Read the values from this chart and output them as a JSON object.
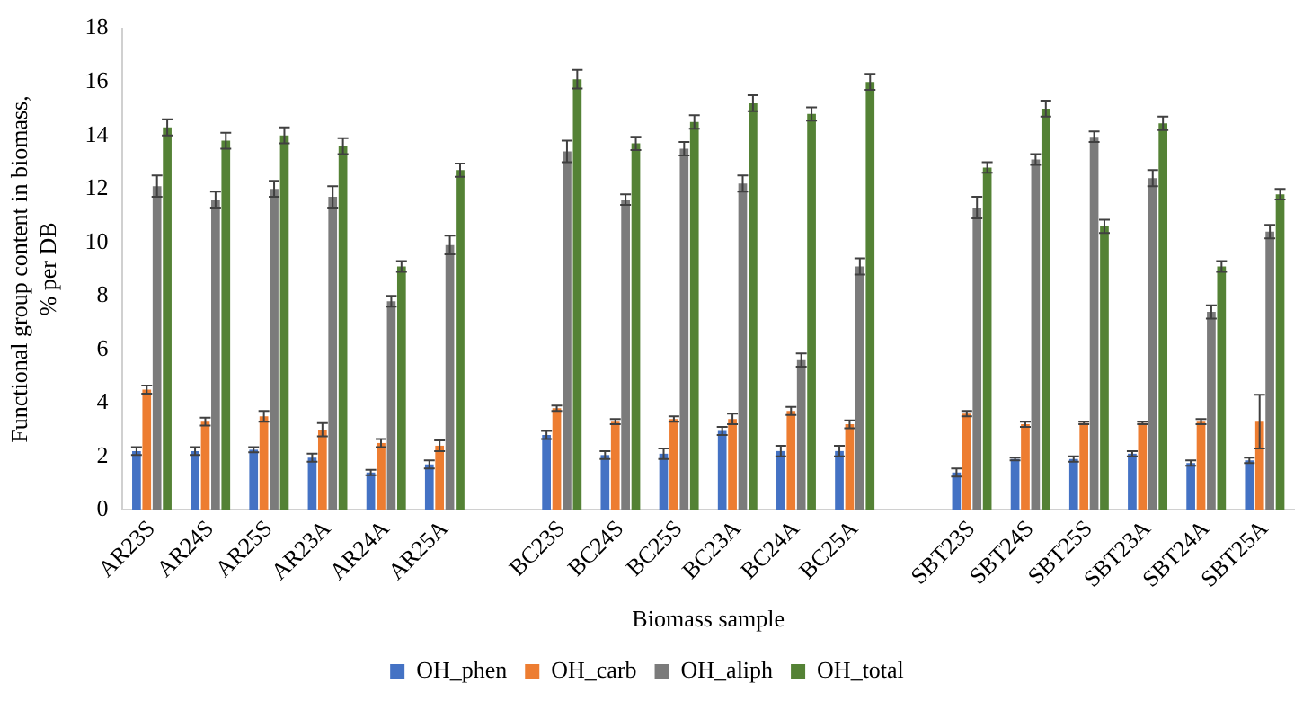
{
  "chart_data": {
    "type": "bar",
    "xlabel": "Biomass sample",
    "ylabel": "Functional group content in biomass, % per DB",
    "categories": [
      "AR23S",
      "AR24S",
      "AR25S",
      "AR23A",
      "AR24A",
      "AR25A",
      null,
      "BC23S",
      "BC24S",
      "BC25S",
      "BC23A",
      "BC24A",
      "BC25A",
      null,
      "SBT23S",
      "SBT24S",
      "SBT25S",
      "SBT23A",
      "SBT24A",
      "SBT25A"
    ],
    "series": [
      {
        "name": "OH_phen",
        "color": "#4472c4",
        "values": [
          2.2,
          2.2,
          2.25,
          1.95,
          1.4,
          1.7,
          null,
          2.8,
          2.05,
          2.1,
          2.95,
          2.2,
          2.2,
          null,
          1.4,
          1.9,
          1.9,
          2.1,
          1.75,
          1.85
        ],
        "errors": [
          0.15,
          0.15,
          0.1,
          0.15,
          0.1,
          0.15,
          null,
          0.15,
          0.15,
          0.2,
          0.15,
          0.2,
          0.2,
          null,
          0.15,
          0.05,
          0.1,
          0.1,
          0.1,
          0.1
        ]
      },
      {
        "name": "OH_carb",
        "color": "#ed7d31",
        "values": [
          4.5,
          3.3,
          3.5,
          3.0,
          2.5,
          2.4,
          null,
          3.8,
          3.3,
          3.4,
          3.4,
          3.7,
          3.2,
          null,
          3.6,
          3.2,
          3.25,
          3.25,
          3.3,
          3.3
        ],
        "errors": [
          0.15,
          0.15,
          0.2,
          0.25,
          0.15,
          0.2,
          null,
          0.1,
          0.1,
          0.1,
          0.2,
          0.15,
          0.15,
          null,
          0.1,
          0.1,
          0.05,
          0.05,
          0.1,
          1.0
        ]
      },
      {
        "name": "OH_aliph",
        "color": "#7b7b7b",
        "values": [
          12.1,
          11.6,
          12.0,
          11.7,
          7.8,
          9.9,
          null,
          13.4,
          11.6,
          13.5,
          12.2,
          5.6,
          9.1,
          null,
          11.3,
          13.1,
          13.95,
          12.4,
          7.4,
          10.4
        ],
        "errors": [
          0.4,
          0.3,
          0.3,
          0.4,
          0.2,
          0.35,
          null,
          0.4,
          0.2,
          0.25,
          0.3,
          0.25,
          0.3,
          null,
          0.4,
          0.2,
          0.2,
          0.3,
          0.25,
          0.25
        ]
      },
      {
        "name": "OH_total",
        "color": "#548235",
        "values": [
          14.3,
          13.8,
          14.0,
          13.6,
          9.1,
          12.7,
          null,
          16.1,
          13.7,
          14.5,
          15.2,
          14.8,
          16.0,
          null,
          12.8,
          15.0,
          10.6,
          14.45,
          9.1,
          11.8
        ],
        "errors": [
          0.3,
          0.3,
          0.3,
          0.3,
          0.2,
          0.25,
          null,
          0.35,
          0.25,
          0.25,
          0.3,
          0.25,
          0.3,
          null,
          0.2,
          0.3,
          0.25,
          0.25,
          0.2,
          0.2
        ]
      }
    ],
    "ylim": [
      0,
      18
    ],
    "yticks": [
      0,
      2,
      4,
      6,
      8,
      10,
      12,
      14,
      16,
      18
    ],
    "grid": false,
    "legend": "bottom"
  }
}
